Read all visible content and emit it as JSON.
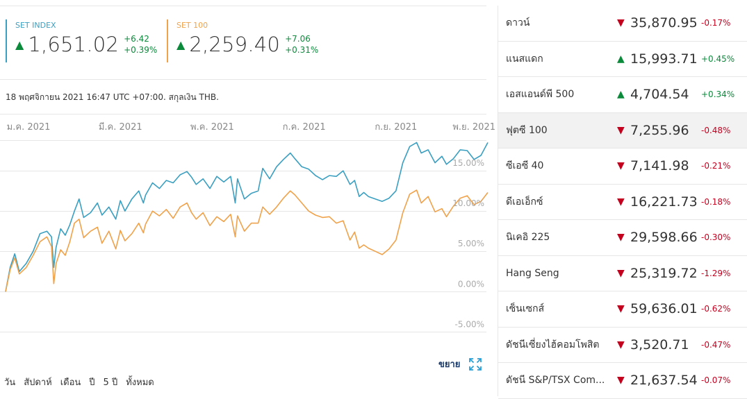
{
  "quotes": [
    {
      "name": "SET INDEX",
      "price": "1,651.02",
      "change": "+6.42",
      "percent": "+0.39%",
      "arrow": "▲"
    },
    {
      "name": "SET 100",
      "price": "2,259.40",
      "change": "+7.06",
      "percent": "+0.31%",
      "arrow": "▲"
    }
  ],
  "meta_text": "18 พฤศจิกายน 2021 16:47 UTC +07:00. สกุลเงิน THB.",
  "expand_label": "ขยาย",
  "ranges": [
    "วัน",
    "สัปดาห์",
    "เดือน",
    "ปี",
    "5 ปี",
    "ทั้งหมด"
  ],
  "chart_data": {
    "type": "line",
    "x_ticks": [
      "ม.ค. 2021",
      "มี.ค. 2021",
      "พ.ค. 2021",
      "ก.ค. 2021",
      "ก.ย. 2021",
      "พ.ย. 2021"
    ],
    "x_range": [
      0,
      10.5
    ],
    "x_tick_positions": [
      0.5,
      2.5,
      4.5,
      6.5,
      8.5,
      10.2
    ],
    "y_ticks": [
      "15.00%",
      "10.00%",
      "5.00%",
      "0.00%",
      "-5.00%"
    ],
    "y_tick_values": [
      15,
      10,
      5,
      0,
      -5
    ],
    "ylim": [
      -6,
      20
    ],
    "grid": true,
    "series": [
      {
        "name": "SET INDEX",
        "color": "#3a9fc0",
        "points": [
          [
            0,
            0
          ],
          [
            0.1,
            3
          ],
          [
            0.2,
            4.7
          ],
          [
            0.3,
            2.5
          ],
          [
            0.45,
            3.5
          ],
          [
            0.6,
            5
          ],
          [
            0.75,
            7.2
          ],
          [
            0.9,
            7.5
          ],
          [
            1.0,
            6.8
          ],
          [
            1.05,
            3
          ],
          [
            1.1,
            5.5
          ],
          [
            1.2,
            7.8
          ],
          [
            1.3,
            7
          ],
          [
            1.4,
            8.3
          ],
          [
            1.5,
            10
          ],
          [
            1.6,
            11.5
          ],
          [
            1.7,
            9.2
          ],
          [
            1.85,
            9.8
          ],
          [
            2.0,
            11
          ],
          [
            2.1,
            9.5
          ],
          [
            2.25,
            10.5
          ],
          [
            2.4,
            9
          ],
          [
            2.5,
            11.3
          ],
          [
            2.6,
            10
          ],
          [
            2.75,
            11.5
          ],
          [
            2.9,
            12.5
          ],
          [
            3.0,
            11
          ],
          [
            3.05,
            12
          ],
          [
            3.2,
            13.5
          ],
          [
            3.35,
            12.8
          ],
          [
            3.5,
            13.8
          ],
          [
            3.65,
            13.5
          ],
          [
            3.8,
            14.5
          ],
          [
            3.95,
            14.9
          ],
          [
            4.05,
            14.2
          ],
          [
            4.15,
            13.3
          ],
          [
            4.3,
            14
          ],
          [
            4.45,
            12.8
          ],
          [
            4.6,
            14.3
          ],
          [
            4.75,
            13.6
          ],
          [
            4.9,
            14.3
          ],
          [
            5.0,
            11
          ],
          [
            5.05,
            14
          ],
          [
            5.2,
            11.5
          ],
          [
            5.35,
            12.2
          ],
          [
            5.5,
            12.5
          ],
          [
            5.6,
            15.3
          ],
          [
            5.75,
            14
          ],
          [
            5.9,
            15.5
          ],
          [
            6.05,
            16.4
          ],
          [
            6.2,
            17.2
          ],
          [
            6.3,
            16.5
          ],
          [
            6.45,
            15.5
          ],
          [
            6.6,
            15.2
          ],
          [
            6.75,
            14.4
          ],
          [
            6.9,
            13.9
          ],
          [
            7.05,
            14.4
          ],
          [
            7.2,
            14.3
          ],
          [
            7.35,
            15
          ],
          [
            7.5,
            13.3
          ],
          [
            7.6,
            13.8
          ],
          [
            7.7,
            11.8
          ],
          [
            7.8,
            12.3
          ],
          [
            7.9,
            11.8
          ],
          [
            8.05,
            11.5
          ],
          [
            8.2,
            11.2
          ],
          [
            8.35,
            11.6
          ],
          [
            8.5,
            12.5
          ],
          [
            8.65,
            16
          ],
          [
            8.8,
            18
          ],
          [
            8.95,
            18.5
          ],
          [
            9.05,
            17.2
          ],
          [
            9.2,
            17.6
          ],
          [
            9.35,
            16
          ],
          [
            9.5,
            16.8
          ],
          [
            9.6,
            15.8
          ],
          [
            9.75,
            16.5
          ],
          [
            9.9,
            17.6
          ],
          [
            10.05,
            17.5
          ],
          [
            10.2,
            16.4
          ],
          [
            10.35,
            16.9
          ],
          [
            10.5,
            18.5
          ]
        ]
      },
      {
        "name": "SET 100",
        "color": "#f0a24a",
        "points": [
          [
            0,
            0
          ],
          [
            0.1,
            2.7
          ],
          [
            0.2,
            4.2
          ],
          [
            0.3,
            2.2
          ],
          [
            0.45,
            3
          ],
          [
            0.6,
            4.5
          ],
          [
            0.75,
            6.2
          ],
          [
            0.9,
            6.8
          ],
          [
            1.0,
            5.6
          ],
          [
            1.05,
            1
          ],
          [
            1.1,
            3.5
          ],
          [
            1.2,
            5.2
          ],
          [
            1.3,
            4.5
          ],
          [
            1.4,
            6.2
          ],
          [
            1.5,
            8.5
          ],
          [
            1.6,
            9
          ],
          [
            1.7,
            6.7
          ],
          [
            1.85,
            7.5
          ],
          [
            2.0,
            8
          ],
          [
            2.1,
            6
          ],
          [
            2.25,
            7.5
          ],
          [
            2.4,
            5.3
          ],
          [
            2.5,
            7.6
          ],
          [
            2.6,
            6.3
          ],
          [
            2.75,
            7.2
          ],
          [
            2.9,
            8.5
          ],
          [
            3.0,
            7.3
          ],
          [
            3.05,
            8.4
          ],
          [
            3.2,
            10
          ],
          [
            3.35,
            9.4
          ],
          [
            3.5,
            10.2
          ],
          [
            3.65,
            9.1
          ],
          [
            3.8,
            10.5
          ],
          [
            3.95,
            11
          ],
          [
            4.05,
            9.8
          ],
          [
            4.15,
            9
          ],
          [
            4.3,
            9.8
          ],
          [
            4.45,
            8.2
          ],
          [
            4.6,
            9.3
          ],
          [
            4.75,
            8.7
          ],
          [
            4.9,
            9.6
          ],
          [
            5.0,
            6.8
          ],
          [
            5.05,
            9.4
          ],
          [
            5.2,
            7.5
          ],
          [
            5.35,
            8.5
          ],
          [
            5.5,
            8.5
          ],
          [
            5.6,
            10.5
          ],
          [
            5.75,
            9.6
          ],
          [
            5.9,
            10.5
          ],
          [
            6.05,
            11.6
          ],
          [
            6.2,
            12.5
          ],
          [
            6.3,
            12
          ],
          [
            6.45,
            11
          ],
          [
            6.6,
            10
          ],
          [
            6.75,
            9.5
          ],
          [
            6.9,
            9.2
          ],
          [
            7.05,
            9.3
          ],
          [
            7.2,
            8.5
          ],
          [
            7.35,
            8.8
          ],
          [
            7.5,
            6.4
          ],
          [
            7.6,
            7.4
          ],
          [
            7.7,
            5.4
          ],
          [
            7.8,
            5.8
          ],
          [
            7.9,
            5.4
          ],
          [
            8.05,
            5
          ],
          [
            8.2,
            4.6
          ],
          [
            8.35,
            5.3
          ],
          [
            8.5,
            6.4
          ],
          [
            8.65,
            9.8
          ],
          [
            8.8,
            12.1
          ],
          [
            8.95,
            12.6
          ],
          [
            9.05,
            11
          ],
          [
            9.2,
            11.8
          ],
          [
            9.35,
            9.9
          ],
          [
            9.5,
            10.3
          ],
          [
            9.6,
            9.3
          ],
          [
            9.75,
            10.6
          ],
          [
            9.9,
            11.6
          ],
          [
            10.05,
            11.9
          ],
          [
            10.2,
            10.8
          ],
          [
            10.35,
            11.2
          ],
          [
            10.5,
            12.3
          ]
        ]
      }
    ]
  },
  "markets": [
    {
      "name": "ดาวน์",
      "arrow": "▼",
      "dir": "dn",
      "value": "35,870.95",
      "change": "-0.17%"
    },
    {
      "name": "แนสแดก",
      "arrow": "▲",
      "dir": "up",
      "value": "15,993.71",
      "change": "+0.45%"
    },
    {
      "name": "เอสแอนด์พี 500",
      "arrow": "▲",
      "dir": "up",
      "value": "4,704.54",
      "change": "+0.34%"
    },
    {
      "name": "ฟุตซี 100",
      "arrow": "▼",
      "dir": "dn",
      "value": "7,255.96",
      "change": "-0.48%",
      "highlight": true
    },
    {
      "name": "ซีเอซี 40",
      "arrow": "▼",
      "dir": "dn",
      "value": "7,141.98",
      "change": "-0.21%"
    },
    {
      "name": "ดีเอเอ็กซ์",
      "arrow": "▼",
      "dir": "dn",
      "value": "16,221.73",
      "change": "-0.18%"
    },
    {
      "name": "นิเคอิ 225",
      "arrow": "▼",
      "dir": "dn",
      "value": "29,598.66",
      "change": "-0.30%"
    },
    {
      "name": "Hang Seng",
      "arrow": "▼",
      "dir": "dn",
      "value": "25,319.72",
      "change": "-1.29%"
    },
    {
      "name": "เซ็นเซกส์",
      "arrow": "▼",
      "dir": "dn",
      "value": "59,636.01",
      "change": "-0.62%"
    },
    {
      "name": "ดัชนีเซี่ยงไฮ้คอมโพสิต",
      "arrow": "▼",
      "dir": "dn",
      "value": "3,520.71",
      "change": "-0.47%"
    },
    {
      "name": "ดัชนี S&P/TSX Com...",
      "arrow": "▼",
      "dir": "dn",
      "value": "21,637.54",
      "change": "-0.07%"
    }
  ]
}
